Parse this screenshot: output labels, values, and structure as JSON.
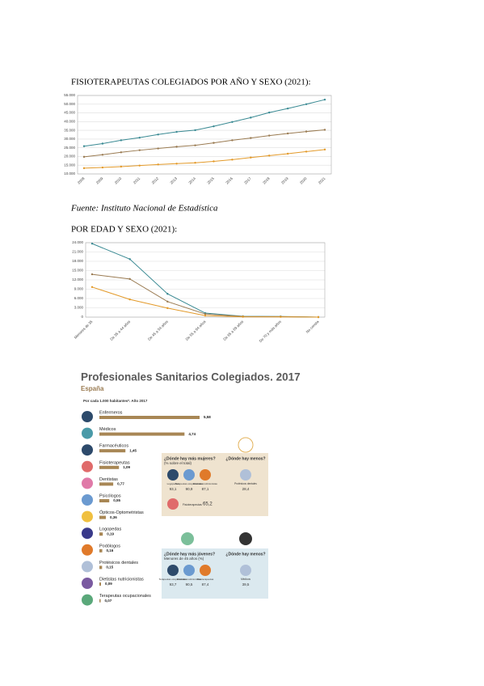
{
  "heading1": "FISIOTERAPEUTAS COLEGIADOS POR AÑO Y SEXO (2021):",
  "source": "Fuente: Instituto Nacional de Estadística",
  "heading2": "POR EDAD Y SEXO (2021):",
  "chart_data": [
    {
      "type": "line",
      "categories": [
        "2008",
        "2009",
        "2010",
        "2011",
        "2012",
        "2013",
        "2014",
        "2015",
        "2016",
        "2017",
        "2018",
        "2019",
        "2020",
        "2021"
      ],
      "series": [
        {
          "color": "#3a8a93",
          "values": [
            25900,
            27400,
            29300,
            30800,
            32600,
            34100,
            35100,
            37300,
            39800,
            42300,
            45200,
            47500,
            50000,
            52600
          ]
        },
        {
          "color": "#9a7b52",
          "values": [
            19800,
            21000,
            22400,
            23600,
            24600,
            25600,
            26400,
            27800,
            29300,
            30600,
            32000,
            33200,
            34300,
            35300
          ]
        },
        {
          "color": "#e39a2a",
          "values": [
            13300,
            13700,
            14200,
            14800,
            15400,
            15900,
            16400,
            17200,
            18200,
            19400,
            20500,
            21600,
            22800,
            24000
          ]
        }
      ],
      "ylim": [
        10000,
        55000
      ],
      "yticks": [
        {
          "value": 10000,
          "label": "10.000"
        },
        {
          "value": 15000,
          "label": "15.000"
        },
        {
          "value": 20000,
          "label": "20.000"
        },
        {
          "value": 25000,
          "label": "25.000"
        },
        {
          "value": 30000,
          "label": "30.000"
        },
        {
          "value": 35000,
          "label": "35.000"
        },
        {
          "value": 40000,
          "label": "40.000"
        },
        {
          "value": 45000,
          "label": "45.000"
        },
        {
          "value": 50000,
          "label": "50.000"
        },
        {
          "value": 55000,
          "label": "55.000"
        }
      ],
      "grid": true
    },
    {
      "type": "line",
      "categories": [
        "Menores de 35",
        "De 35 a 44 años",
        "De 45 a 54 años",
        "De 55 a 64 años",
        "De 65 a 69 años",
        "De 70 y más años",
        "No consta"
      ],
      "series": [
        {
          "color": "#3a8a93",
          "values": [
            23700,
            18700,
            7500,
            1300,
            260,
            200,
            0
          ]
        },
        {
          "color": "#9a7b52",
          "values": [
            13800,
            12300,
            5000,
            1000,
            200,
            150,
            0
          ]
        },
        {
          "color": "#e39a2a",
          "values": [
            9700,
            5700,
            2900,
            500,
            100,
            80,
            0
          ]
        }
      ],
      "ylim": [
        0,
        24000
      ],
      "yticks": [
        0,
        {
          "value": 3000,
          "label": "3.000"
        },
        {
          "value": 6000,
          "label": "6.000"
        },
        {
          "value": 9000,
          "label": "9.000"
        },
        {
          "value": 12000,
          "label": "12.000"
        },
        {
          "value": 15000,
          "label": "15.000"
        },
        {
          "value": 18000,
          "label": "18.000"
        },
        {
          "value": 21000,
          "label": "21.000"
        },
        {
          "value": 24000,
          "label": "24.000"
        }
      ],
      "grid": true
    }
  ],
  "infographic": {
    "title": "Profesionales Sanitarios Colegiados. 2017",
    "subtitle": "España",
    "note": "Por cada 1.000 habitantes*. Año 2017",
    "items": [
      {
        "name": "Enfermeros",
        "value": 5.58,
        "label": "5,58"
      },
      {
        "name": "Médicos",
        "value": 4.74,
        "label": "4,74"
      },
      {
        "name": "Farmacéuticos",
        "value": 1.45,
        "label": "1,45"
      },
      {
        "name": "Fisioterapeutas",
        "value": 1.09,
        "label": "1,09"
      },
      {
        "name": "Dentistas",
        "value": 0.77,
        "label": "0,77"
      },
      {
        "name": "Psicólogos",
        "value": 0.55,
        "label": "0,55"
      },
      {
        "name": "Ópticos-Optometristas",
        "value": 0.36,
        "label": "0,36"
      },
      {
        "name": "Logopedas",
        "value": 0.19,
        "label": "0,19"
      },
      {
        "name": "Podólogos",
        "value": 0.16,
        "label": "0,16"
      },
      {
        "name": "Protésicos dentales",
        "value": 0.15,
        "label": "0,15"
      },
      {
        "name": "Dietistas nutricionistas",
        "value": 0.09,
        "label": "0,09"
      },
      {
        "name": "Terapeutas ocupacionales",
        "value": 0.07,
        "label": "0,07"
      }
    ],
    "women": {
      "title": "¿Dónde hay más mujeres?",
      "subtitle": "(% sobre el total)",
      "items": [
        {
          "name": "Logopedas",
          "label": "93,1"
        },
        {
          "name": "Terapeutas ocupacionales",
          "label": "90,9"
        },
        {
          "name": "Dietistas nutricionistas",
          "label": "87,1"
        }
      ],
      "less_title": "¿Dónde hay menos?",
      "less": {
        "name": "Protésicos dentales",
        "label": "28,4"
      },
      "extra": {
        "name": "Fisioterapeutas",
        "label": "65,2"
      }
    },
    "young": {
      "title": "¿Dónde hay más jóvenes?",
      "subtitle": "Menores de 45 años (%)",
      "items": [
        {
          "name": "Terapeutas ocupacionales",
          "label": "93,7"
        },
        {
          "name": "Dietistas nutricionistas",
          "label": "90,5"
        },
        {
          "name": "Fisioterapeutas",
          "label": "87,4"
        }
      ],
      "less_title": "¿Dónde hay menos?",
      "less": {
        "name": "Médicos",
        "label": "39,5"
      }
    }
  }
}
